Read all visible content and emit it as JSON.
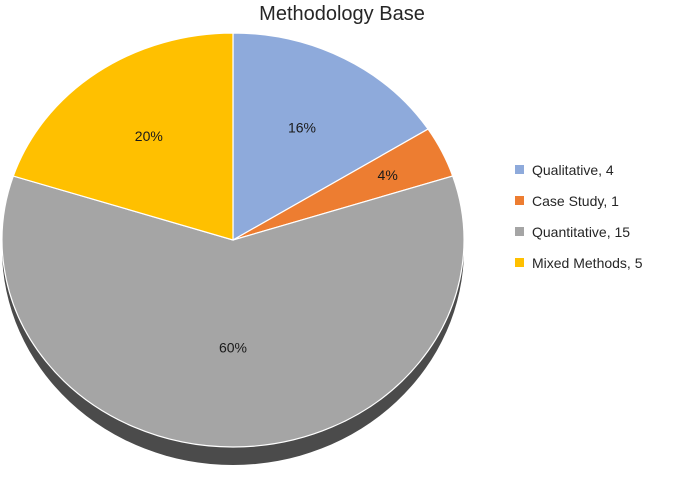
{
  "chart_data": {
    "type": "pie",
    "title": "Methodology Base",
    "slices": [
      {
        "label": "Qualitative",
        "value": 4,
        "percent_label": "16%",
        "legend": "Qualitative, 4",
        "color": "#8EAADB"
      },
      {
        "label": "Case Study",
        "value": 1,
        "percent_label": "4%",
        "legend": "Case Study, 1",
        "color": "#ED7D31"
      },
      {
        "label": "Quantitative",
        "value": 15,
        "percent_label": "60%",
        "legend": "Quantitative, 15",
        "color": "#A5A5A5"
      },
      {
        "label": "Mixed Methods",
        "value": 5,
        "percent_label": "20%",
        "legend": "Mixed Methods, 5",
        "color": "#FFC000"
      }
    ],
    "legend_position": "right",
    "start_angle": "12 o'clock",
    "direction": "clockwise",
    "style": "3d-shadow"
  }
}
